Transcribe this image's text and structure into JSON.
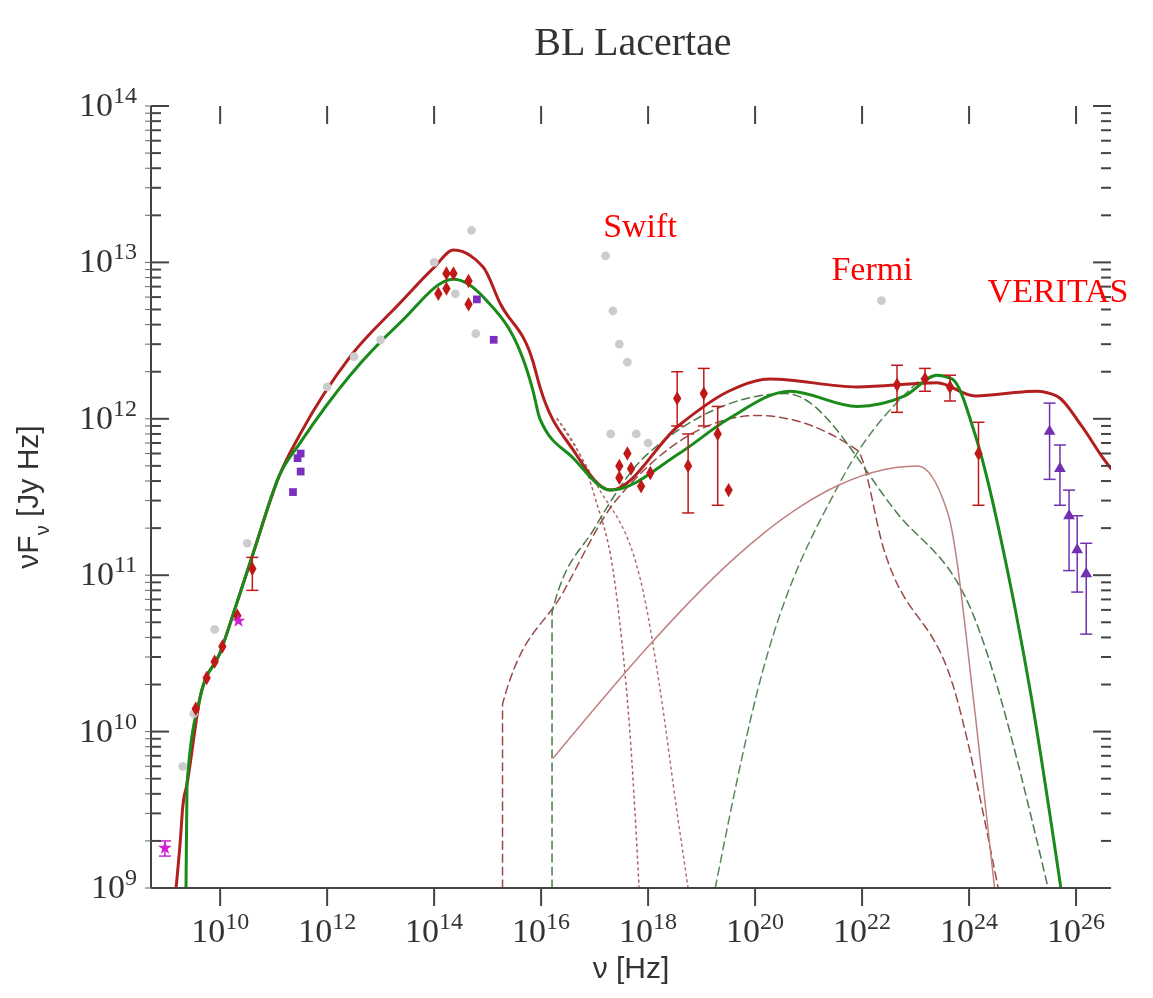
{
  "chart_data": {
    "type": "line",
    "title": "BL Lacertae",
    "xlabel": "ν [Hz]",
    "ylabel": "νF$_{ν}$ [Jy Hz]",
    "log": "xy",
    "grid": false,
    "xlim": [
      510000000.0,
      4.5e+26
    ],
    "ylim": [
      1000000000.0,
      100000000000000.0
    ],
    "xticks": [
      {
        "value": 10000000000.0,
        "label": "10$^{10}$"
      },
      {
        "value": 1000000000000.0,
        "label": "10$^{12}$"
      },
      {
        "value": 100000000000000.0,
        "label": "10$^{14}$"
      },
      {
        "value": 1e+16,
        "label": "10$^{16}$"
      },
      {
        "value": 1e+18,
        "label": "10$^{18}$"
      },
      {
        "value": 1e+20,
        "label": "10$^{20}$"
      },
      {
        "value": 1e+22,
        "label": "10$^{22}$"
      },
      {
        "value": 1e+24,
        "label": "10$^{24}$"
      },
      {
        "value": 1e+26,
        "label": "10$^{26}$"
      }
    ],
    "yticks": [
      {
        "value": 1000000000.0,
        "label": "10$^{9}$"
      },
      {
        "value": 2000000000.0,
        "label": null
      },
      {
        "value": 3000000000.0,
        "label": null
      },
      {
        "value": 4000000000.0,
        "label": null
      },
      {
        "value": 5000000000.0,
        "label": null
      },
      {
        "value": 6000000000.0,
        "label": null
      },
      {
        "value": 7000000000.0,
        "label": null
      },
      {
        "value": 8000000000.0,
        "label": null
      },
      {
        "value": 9000000000.0,
        "label": null
      },
      {
        "value": 10000000000.0,
        "label": "10$^{10}$"
      },
      {
        "value": 20000000000.0,
        "label": null
      },
      {
        "value": 30000000000.0,
        "label": null
      },
      {
        "value": 40000000000.0,
        "label": null
      },
      {
        "value": 50000000000.0,
        "label": null
      },
      {
        "value": 60000000000.0,
        "label": null
      },
      {
        "value": 70000000000.0,
        "label": null
      },
      {
        "value": 80000000000.0,
        "label": null
      },
      {
        "value": 90000000000.0,
        "label": null
      },
      {
        "value": 100000000000.0,
        "label": "10$^{11}$"
      },
      {
        "value": 200000000000.0,
        "label": null
      },
      {
        "value": 300000000000.0,
        "label": null
      },
      {
        "value": 400000000000.0,
        "label": null
      },
      {
        "value": 500000000000.0,
        "label": null
      },
      {
        "value": 600000000000.0,
        "label": null
      },
      {
        "value": 700000000000.0,
        "label": null
      },
      {
        "value": 800000000000.0,
        "label": null
      },
      {
        "value": 900000000000.0,
        "label": null
      },
      {
        "value": 1000000000000.0,
        "label": "10$^{12}$"
      },
      {
        "value": 2000000000000.0,
        "label": null
      },
      {
        "value": 3000000000000.0,
        "label": null
      },
      {
        "value": 4000000000000.0,
        "label": null
      },
      {
        "value": 5000000000000.0,
        "label": null
      },
      {
        "value": 6000000000000.0,
        "label": null
      },
      {
        "value": 7000000000000.0,
        "label": null
      },
      {
        "value": 8000000000000.0,
        "label": null
      },
      {
        "value": 9000000000000.0,
        "label": null
      },
      {
        "value": 10000000000000.0,
        "label": "10$^{13}$"
      },
      {
        "value": 20000000000000.0,
        "label": null
      },
      {
        "value": 30000000000000.0,
        "label": null
      },
      {
        "value": 40000000000000.0,
        "label": null
      },
      {
        "value": 50000000000000.0,
        "label": null
      },
      {
        "value": 60000000000000.0,
        "label": null
      },
      {
        "value": 70000000000000.0,
        "label": null
      },
      {
        "value": 80000000000000.0,
        "label": null
      },
      {
        "value": 90000000000000.0,
        "label": null
      },
      {
        "value": 100000000000000.0,
        "label": "10$^{14}$"
      }
    ],
    "annotations": [
      "Swift",
      "Fermi",
      "VERITAS"
    ],
    "series": [
      {
        "type": "scatter",
        "marker": "circle",
        "color": "#cccccc",
        "x": [
          2000000000.0,
          3200000000.0,
          7900000000.0,
          32000000000.0,
          1000000000000.0,
          3200000000000.0,
          10000000000000.0,
          100000000000000.0,
          250000000000000.0,
          500000000000000.0,
          600000000000000.0,
          1.6e+17,
          2.2e+17,
          2.9e+17,
          4.1e+17,
          2e+17,
          6e+17,
          1e+18,
          2.3e+22
        ],
        "values": [
          6000000000.0,
          13000000000.0,
          45000000000.0,
          160000000000.0,
          1600000000000.0,
          2500000000000.0,
          3200000000000.0,
          10000000000000.0,
          6300000000000.0,
          16000000000000.0,
          3500000000000.0,
          11000000000000.0,
          4900000000000.0,
          3000000000000.0,
          2300000000000.0,
          800000000000.0,
          800000000000.0,
          700000000000.0,
          5700000000000.0
        ]
      },
      {
        "marker": "none",
        "line_style": "dotted",
        "color": "#b06060",
        "x": [
          2e+16,
          1e+17,
          2.5e+17,
          5e+17,
          6.8e+17
        ],
        "values": [
          1000000000000.0,
          320000000000.0,
          80000000000.0,
          6300000000.0,
          1000000000.0
        ]
      },
      {
        "marker": "none",
        "line_style": "dotted",
        "color": "#b07070",
        "x": [
          2e+16,
          1e+17,
          8e+17,
          1.7e+18,
          3.5e+18,
          5.6e+18
        ],
        "values": [
          1000000000000.0,
          400000000000.0,
          80000000000.0,
          18000000000.0,
          3000000000.0,
          1000000000.0
        ]
      },
      {
        "marker": "none",
        "line_style": "dashed",
        "color": "#9b4a4a",
        "x": [
          1900000000000000.0,
          1900000000000000.0,
          2.6e+16,
          2.5e+17,
          1.1e+20,
          8.1e+21,
          2.5e+22,
          6e+23,
          3.5e+24
        ],
        "values": [
          1000000000.0,
          15000000000.0,
          78000000000.0,
          300000000000.0,
          1050000000000.0,
          630000000000.0,
          150000000000.0,
          16000000000.0,
          1000000000.0
        ]
      },
      {
        "marker": "none",
        "line_style": "dashed",
        "color": "#4a7a4a",
        "x": [
          1.6e+16,
          1.6e+16,
          1e+17,
          1e+18,
          3.8e+20,
          4.5e+22,
          1.3e+24,
          3e+25
        ],
        "values": [
          1000000000.0,
          58000000000.0,
          200000000000.0,
          600000000000.0,
          1450000000000.0,
          250000000000.0,
          52000000000.0,
          1000000000.0
        ]
      },
      {
        "marker": "none",
        "line_style": "dashed",
        "color": "#5a8a5a",
        "x": [
          1.8e+19,
          1.1e+20,
          4e+21,
          1.5e+23
        ],
        "values": [
          1000000000.0,
          18000000000.0,
          400000000000.0,
          1900000000000.0
        ]
      },
      {
        "marker": "none",
        "line_style": "solid",
        "color": "#c08080",
        "x": [
          1.7e+16,
          1.1e+23,
          4e+23,
          1.3e+24,
          3e+24
        ],
        "values": [
          6800000000.0,
          500000000000.0,
          250000000000.0,
          13000000000.0,
          1000000000.0
        ]
      },
      {
        "marker": "none",
        "line_style": "solid",
        "color": "#b21f1f",
        "x": [
          1500000000.0,
          1800000000.0,
          2000000000.0,
          2400000000.0,
          4300000000.0,
          10000000000.0,
          21000000000.0,
          42000000000.0,
          130000000000.0,
          320000000000.0,
          2700000000000.0,
          23000000000000.0,
          100000000000000.0,
          230000000000000.0,
          830000000000000.0,
          1700000000000000.0,
          7100000000000000.0,
          9500000000000000.0,
          4e+16,
          2e+17,
          3.8e+18,
          3.2e+19,
          1.9e+20,
          8.1e+21,
          2.5e+23,
          1.3e+24,
          1.8e+25,
          4.3e+25,
          1.3e+26,
          3.2e+26,
          4.5e+26
        ],
        "values": [
          1000000000.0,
          2000000000.0,
          3300000000.0,
          4600000000.0,
          17000000000.0,
          32000000000.0,
          68000000000.0,
          140000000000.0,
          440000000000.0,
          810000000000.0,
          2500000000000.0,
          5500000000000.0,
          9300000000000.0,
          12000000000000.0,
          9300000000000.0,
          5500000000000.0,
          2300000000000.0,
          1600000000000.0,
          630000000000.0,
          350000000000.0,
          910000000000.0,
          1500000000000.0,
          1800000000000.0,
          1600000000000.0,
          1700000000000.0,
          1400000000000.0,
          1500000000000.0,
          1400000000000.0,
          890000000000.0,
          560000000000.0,
          480000000000.0
        ]
      },
      {
        "marker": "none",
        "line_style": "solid",
        "color": "#1a8a1a",
        "x": [
          2300000000.0,
          2400000000.0,
          4300000000.0,
          10000000000.0,
          21000000000.0,
          42000000000.0,
          130000000000.0,
          320000000000.0,
          2700000000000.0,
          23000000000000.0,
          230000000000000.0,
          830000000000000.0,
          7100000000000000.0,
          9500000000000000.0,
          4e+16,
          2e+17,
          3.8e+18,
          3.2e+19,
          4.5e+20,
          8.1e+21,
          6.3e+22,
          2.5e+23,
          4.8e+23,
          1.3e+24,
          6.3e+24,
          1.4e+25,
          5.2e+25
        ],
        "values": [
          1000000000.0,
          4600000000.0,
          17000000000.0,
          32000000000.0,
          68000000000.0,
          140000000000.0,
          440000000000.0,
          710000000000.0,
          1900000000000.0,
          4100000000000.0,
          7800000000000.0,
          6000000000000.0,
          1500000000000.0,
          1000000000000.0,
          560000000000.0,
          350000000000.0,
          600000000000.0,
          1000000000000.0,
          1500000000000.0,
          1200000000000.0,
          1400000000000.0,
          1900000000000.0,
          1800000000000.0,
          790000000000.0,
          78000000000.0,
          18000000000.0,
          1000000000.0
        ]
      },
      {
        "type": "scatter",
        "marker": "diamond",
        "color": "#c01818",
        "x": [
          3500000000.0,
          5600000000.0,
          7900000000.0,
          11000000000.0,
          21000000000.0,
          40000000000.0,
          120000000000000.0,
          170000000000000.0,
          170000000000000.0,
          230000000000000.0,
          440000000000000.0,
          440000000000000.0,
          2.9e+17,
          2.9e+17,
          4.1e+17,
          4.8e+17,
          7.4e+17,
          1.1e+18,
          3.5e+18,
          5.6e+18,
          1.1e+19,
          2e+19,
          3.2e+19,
          4.5e+22,
          1.5e+23,
          4.4e+23,
          1.5e+24
        ],
        "values": [
          14000000000.0,
          22000000000.0,
          28000000000.0,
          35000000000.0,
          55000000000.0,
          110000000000.0,
          6300000000000.0,
          8500000000000.0,
          6800000000000.0,
          8500000000000.0,
          7600000000000.0,
          5400000000000.0,
          500000000000.0,
          420000000000.0,
          600000000000.0,
          480000000000.0,
          370000000000.0,
          450000000000.0,
          1350000000000.0,
          500000000000.0,
          1450000000000.0,
          800000000000.0,
          350000000000.0,
          1650000000000.0,
          1800000000000.0,
          1600000000000.0,
          600000000000.0
        ],
        "errors": [
          null,
          null,
          null,
          null,
          null,
          [
            80000000000.0,
            130000000000.0
          ],
          null,
          null,
          null,
          null,
          null,
          null,
          null,
          null,
          null,
          null,
          null,
          null,
          [
            900000000000.0,
            2000000000000.0
          ],
          [
            250000000000.0,
            800000000000.0
          ],
          [
            900000000000.0,
            2100000000000.0
          ],
          [
            280000000000.0,
            1200000000000.0
          ],
          null,
          [
            1100000000000.0,
            2200000000000.0
          ],
          [
            1500000000000.0,
            2100000000000.0
          ],
          [
            1300000000000.0,
            1900000000000.0
          ],
          [
            280000000000.0,
            950000000000.0
          ]
        ]
      },
      {
        "type": "scatter",
        "marker": "square",
        "color": "#7b2fbe",
        "x": [
          230000000000.0,
          280000000000.0,
          320000000000.0,
          320000000000.0,
          630000000000000.0,
          1300000000000000.0
        ],
        "values": [
          340000000000.0,
          560000000000.0,
          460000000000.0,
          600000000000.0,
          5800000000000.0,
          3200000000000.0
        ]
      },
      {
        "type": "scatter",
        "marker": "star",
        "color": "#d020d0",
        "x": [
          930000000.0,
          22000000000.0
        ],
        "values": [
          1800000000.0,
          51000000000.0
        ],
        "errors": [
          [
            1600000000.0,
            2000000000.0
          ],
          null
        ]
      },
      {
        "type": "scatter",
        "marker": "triangle",
        "color": "#7030b0",
        "x": [
          3.2e+25,
          5e+25,
          7.4e+25,
          1.05e+26,
          1.55e+26
        ],
        "values": [
          830000000000.0,
          480000000000.0,
          240000000000.0,
          145000000000.0,
          102000000000.0
        ],
        "errors": [
          [
            410000000000.0,
            1260000000000.0
          ],
          [
            280000000000.0,
            680000000000.0
          ],
          [
            107000000000.0,
            350000000000.0
          ],
          [
            78000000000.0,
            240000000000.0
          ],
          [
            42000000000.0,
            160000000000.0
          ]
        ]
      }
    ]
  }
}
